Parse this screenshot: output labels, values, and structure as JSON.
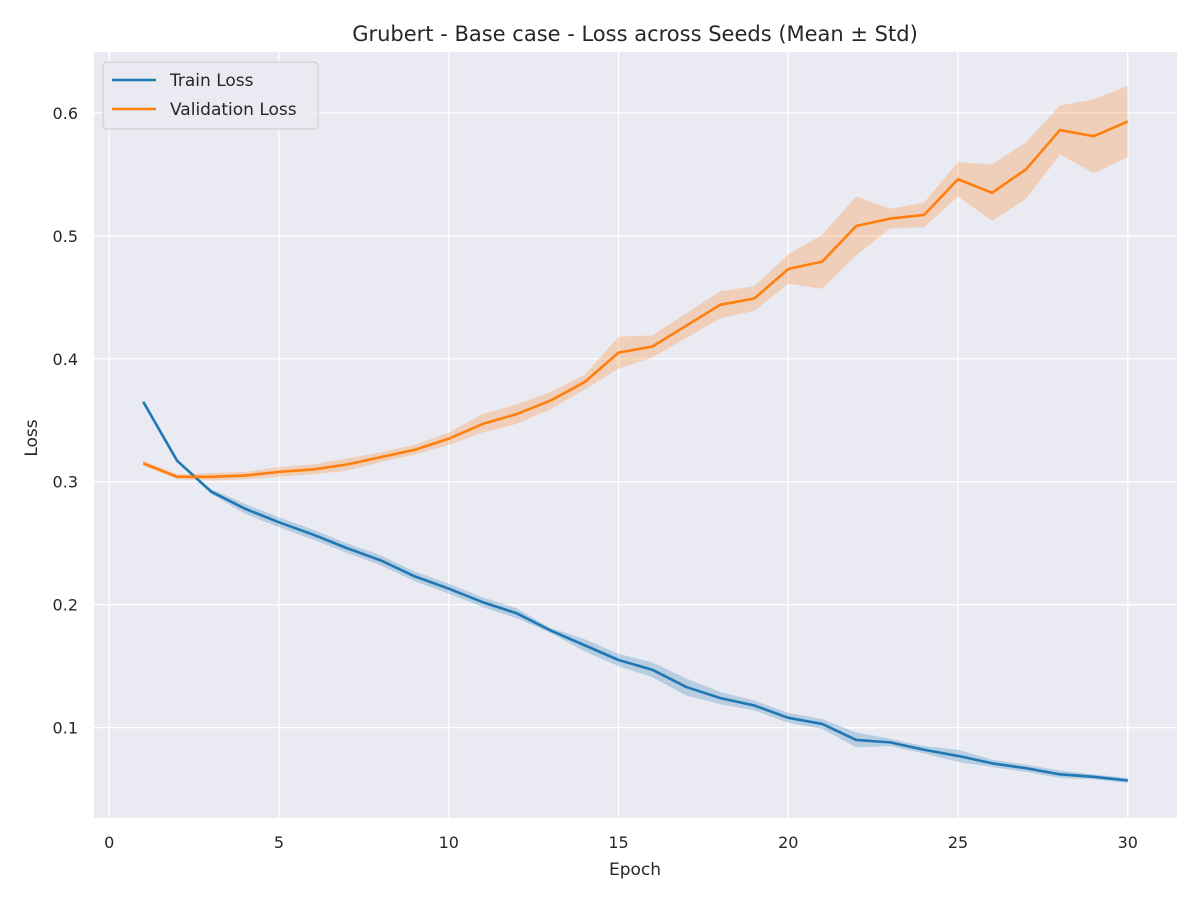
{
  "chart_data": {
    "type": "line",
    "title": "Grubert - Base case - Loss across Seeds (Mean ± Std)",
    "xlabel": "Epoch",
    "ylabel": "Loss",
    "xlim": [
      -0.45,
      31.45
    ],
    "ylim": [
      0.0265,
      0.6495
    ],
    "xticks": [
      0,
      5,
      10,
      15,
      20,
      25,
      30
    ],
    "yticks": [
      0.1,
      0.2,
      0.3,
      0.4,
      0.5,
      0.6
    ],
    "grid": true,
    "legend_position": "top-left",
    "background_color": "#eaeaf2",
    "x": [
      1,
      2,
      3,
      4,
      5,
      6,
      7,
      8,
      9,
      10,
      11,
      12,
      13,
      14,
      15,
      16,
      17,
      18,
      19,
      20,
      21,
      22,
      23,
      24,
      25,
      26,
      27,
      28,
      29,
      30
    ],
    "series": [
      {
        "name": "Train Loss",
        "color": "#1f77b4",
        "mean": [
          0.365,
          0.317,
          0.292,
          0.278,
          0.267,
          0.257,
          0.246,
          0.236,
          0.223,
          0.213,
          0.202,
          0.193,
          0.179,
          0.167,
          0.155,
          0.147,
          0.133,
          0.124,
          0.118,
          0.108,
          0.103,
          0.09,
          0.088,
          0.082,
          0.077,
          0.071,
          0.067,
          0.062,
          0.06,
          0.057
        ],
        "lower": [
          0.365,
          0.316,
          0.29,
          0.274,
          0.263,
          0.253,
          0.242,
          0.232,
          0.219,
          0.209,
          0.198,
          0.189,
          0.177,
          0.162,
          0.15,
          0.141,
          0.126,
          0.119,
          0.114,
          0.104,
          0.099,
          0.084,
          0.085,
          0.079,
          0.072,
          0.068,
          0.064,
          0.059,
          0.058,
          0.055
        ],
        "upper": [
          0.365,
          0.318,
          0.294,
          0.282,
          0.271,
          0.261,
          0.25,
          0.24,
          0.227,
          0.217,
          0.206,
          0.197,
          0.181,
          0.172,
          0.16,
          0.153,
          0.14,
          0.129,
          0.122,
          0.112,
          0.107,
          0.096,
          0.091,
          0.085,
          0.082,
          0.074,
          0.07,
          0.065,
          0.062,
          0.059
        ]
      },
      {
        "name": "Validation Loss",
        "color": "#ff7f0e",
        "mean": [
          0.315,
          0.304,
          0.304,
          0.305,
          0.308,
          0.31,
          0.314,
          0.32,
          0.326,
          0.335,
          0.347,
          0.355,
          0.366,
          0.381,
          0.405,
          0.41,
          0.427,
          0.444,
          0.449,
          0.473,
          0.479,
          0.508,
          0.514,
          0.517,
          0.546,
          0.535,
          0.554,
          0.586,
          0.581,
          0.593
        ],
        "lower": [
          0.313,
          0.302,
          0.301,
          0.302,
          0.304,
          0.306,
          0.309,
          0.316,
          0.322,
          0.33,
          0.34,
          0.347,
          0.359,
          0.375,
          0.392,
          0.401,
          0.417,
          0.433,
          0.439,
          0.461,
          0.457,
          0.484,
          0.506,
          0.507,
          0.532,
          0.512,
          0.53,
          0.566,
          0.551,
          0.564
        ],
        "upper": [
          0.317,
          0.306,
          0.307,
          0.308,
          0.312,
          0.314,
          0.319,
          0.324,
          0.33,
          0.34,
          0.355,
          0.363,
          0.373,
          0.387,
          0.418,
          0.419,
          0.437,
          0.455,
          0.459,
          0.485,
          0.501,
          0.532,
          0.522,
          0.527,
          0.56,
          0.558,
          0.576,
          0.606,
          0.611,
          0.622
        ]
      }
    ]
  }
}
